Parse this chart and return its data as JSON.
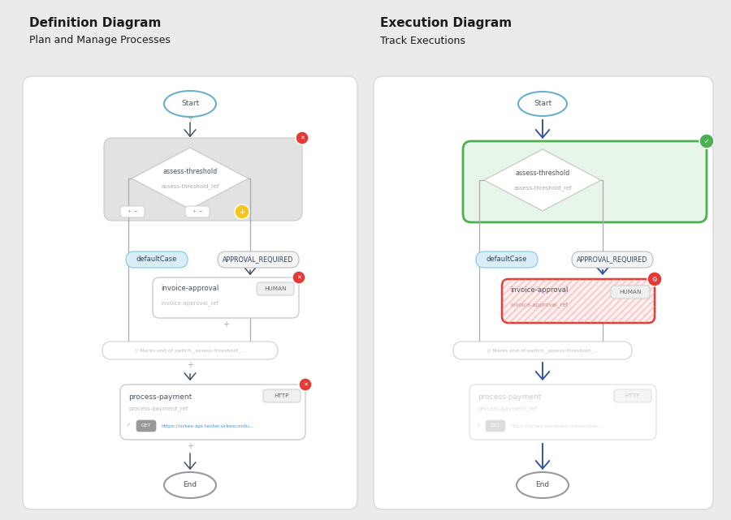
{
  "bg_color": "#ebebeb",
  "panel_color": "#ffffff",
  "title1": "Definition Diagram",
  "subtitle1": "Plan and Manage Processes",
  "title2": "Execution Diagram",
  "subtitle2": "Track Executions",
  "node_border_blue": "#6ab0d0",
  "node_border_green": "#4caf50",
  "node_border_red": "#e53935",
  "badge_red": "#e53935",
  "badge_green": "#4caf50",
  "badge_yellow": "#f5c518",
  "label_blue_bg": "#daeef7",
  "label_blue_border": "#7ec8e3",
  "label_gray_bg": "#f5f5f5",
  "label_gray_border": "#bbbbbb",
  "arrow_dark": "#334455",
  "arrow_gray": "#999999",
  "text_dark": "#1a1a1a",
  "text_mid": "#445566",
  "text_light": "#999999",
  "text_lighter": "#bbbbbb",
  "text_blue_link": "#4a90d9",
  "container_gray_bg": "#e2e2e2",
  "container_gray_border": "#c8c8c8",
  "green_container_bg": "#e8f5e9",
  "green_container_border": "#4caf50"
}
